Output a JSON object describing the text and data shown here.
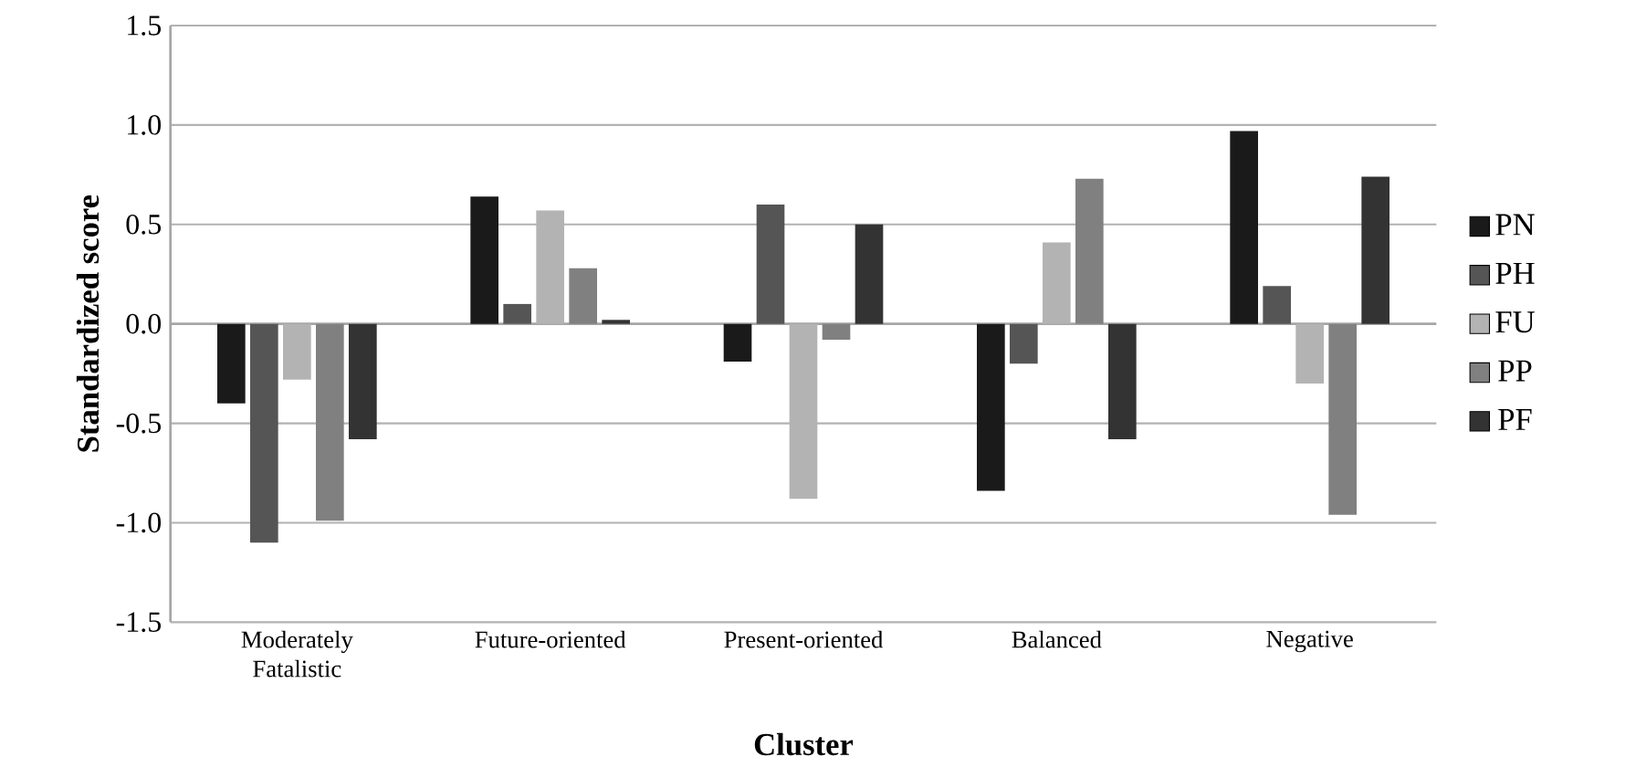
{
  "chart_data": {
    "type": "bar",
    "xlabel": "Cluster",
    "ylabel": "Standardized score",
    "categories": [
      "Moderately Fatalistic",
      "Future-oriented",
      "Present-oriented",
      "Balanced",
      "Negative"
    ],
    "series": [
      {
        "name": "PN",
        "color": "#1a1a1a",
        "values": [
          -0.4,
          0.64,
          -0.19,
          -0.84,
          0.97
        ]
      },
      {
        "name": "PH",
        "color": "#555555",
        "values": [
          -1.1,
          0.1,
          0.6,
          -0.2,
          0.19
        ]
      },
      {
        "name": "FU",
        "color": "#b3b3b3",
        "values": [
          -0.28,
          0.57,
          -0.88,
          0.41,
          -0.3
        ]
      },
      {
        "name": "PP",
        "color": "#808080",
        "values": [
          -0.99,
          0.28,
          -0.08,
          0.73,
          -0.96
        ]
      },
      {
        "name": "PF",
        "color": "#333333",
        "values": [
          -0.58,
          0.02,
          0.5,
          -0.58,
          0.74
        ]
      }
    ],
    "ylim": [
      -1.5,
      1.5
    ],
    "yticks": [
      {
        "value": -1.5,
        "label": "-1.5"
      },
      {
        "value": -1.0,
        "label": "-1.0"
      },
      {
        "value": -0.5,
        "label": "-0.5"
      },
      {
        "value": 0.0,
        "label": "0.0"
      },
      {
        "value": 0.5,
        "label": "0.5"
      },
      {
        "value": 1.0,
        "label": "1.0"
      },
      {
        "value": 1.5,
        "label": "1.5"
      }
    ],
    "grid": "y",
    "legend": "right"
  }
}
